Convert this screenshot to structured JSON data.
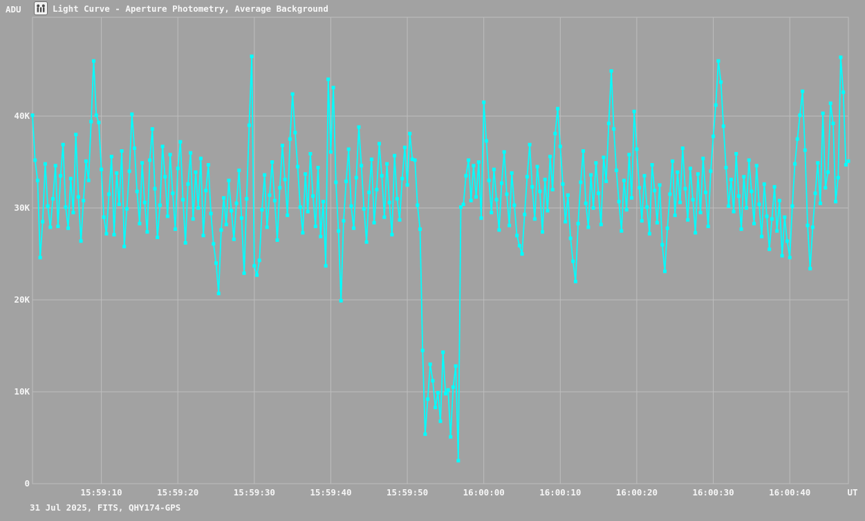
{
  "window": {
    "background_color": "#A2A2A2",
    "grid_color": "#BEBEBE",
    "text_color": "#F6F6F6"
  },
  "header": {
    "y_axis_unit": "ADU",
    "icon": "app-icon",
    "title": "Light Curve - Aperture Photometry, Average Background"
  },
  "footer": {
    "info": "31 Jul 2025, FITS, QHY174-GPS",
    "x_axis_unit": "UT"
  },
  "chart_data": {
    "type": "line",
    "title": "Light Curve - Aperture Photometry, Average Background",
    "xlabel": "UT",
    "ylabel": "ADU",
    "legend": [],
    "grid": true,
    "series_color": "#00FFFF",
    "marker": "square",
    "marker_size_px": 5,
    "ylim": [
      0,
      50750
    ],
    "xlim_sec": [
      1.0,
      107.6667
    ],
    "time_base": "15:59:00",
    "start_time": "15:59:01",
    "sample_interval_sec": 0.3333333,
    "t0_sec": 1.0,
    "dt_sec": 0.3333333,
    "event_note": "occultation drop from ~32000 ADU to ~2500-14500 ADU between ~15:59:51 and ~15:59:57",
    "y_ticks": [
      {
        "value": 0,
        "label": "0"
      },
      {
        "value": 10000,
        "label": "10K"
      },
      {
        "value": 20000,
        "label": "20K"
      },
      {
        "value": 30000,
        "label": "30K"
      },
      {
        "value": 40000,
        "label": "40K"
      }
    ],
    "x_ticks": [
      {
        "sec": 10,
        "label": "15:59:10"
      },
      {
        "sec": 20,
        "label": "15:59:20"
      },
      {
        "sec": 30,
        "label": "15:59:30"
      },
      {
        "sec": 40,
        "label": "15:59:40"
      },
      {
        "sec": 50,
        "label": "15:59:50"
      },
      {
        "sec": 60,
        "label": "16:00:00"
      },
      {
        "sec": 70,
        "label": "16:00:10"
      },
      {
        "sec": 80,
        "label": "16:00:20"
      },
      {
        "sec": 90,
        "label": "16:00:30"
      },
      {
        "sec": 100,
        "label": "16:00:40"
      }
    ],
    "values_adu": [
      40100,
      35200,
      33000,
      24600,
      28500,
      34800,
      30200,
      27900,
      31000,
      34600,
      28000,
      33500,
      36900,
      30100,
      27800,
      33200,
      29500,
      38000,
      31200,
      26400,
      30800,
      35100,
      33000,
      39400,
      46000,
      40100,
      39300,
      34200,
      29000,
      27200,
      31500,
      35600,
      27100,
      33800,
      30400,
      36200,
      25800,
      29900,
      34000,
      40200,
      36500,
      31800,
      28300,
      34900,
      30600,
      27400,
      35200,
      38600,
      32100,
      26800,
      30300,
      36700,
      33400,
      29100,
      35800,
      31600,
      27700,
      34300,
      37200,
      30900,
      26200,
      32600,
      36000,
      28800,
      33900,
      30000,
      35400,
      27000,
      31900,
      34700,
      29400,
      26100,
      24000,
      20700,
      27600,
      31100,
      28200,
      33000,
      29700,
      26600,
      30500,
      34100,
      28900,
      22900,
      31000,
      39000,
      46500,
      23700,
      22700,
      24300,
      29800,
      33600,
      27900,
      31400,
      35000,
      30800,
      26500,
      32200,
      36800,
      33100,
      29200,
      37500,
      42400,
      38200,
      34500,
      30100,
      27300,
      33700,
      29600,
      35900,
      31300,
      28000,
      34400,
      26900,
      30700,
      23700,
      44000,
      36100,
      43100,
      32800,
      27500,
      19900,
      28600,
      32900,
      36400,
      30200,
      27800,
      33300,
      38800,
      34600,
      29900,
      26300,
      31700,
      35300,
      28400,
      32000,
      37000,
      33500,
      29000,
      34800,
      30600,
      27100,
      35700,
      31000,
      28700,
      33200,
      36600,
      32500,
      38100,
      35300,
      35200,
      30300,
      27700,
      14500,
      5400,
      9200,
      13000,
      11200,
      8300,
      9900,
      6800,
      14300,
      9800,
      10200,
      5100,
      10500,
      12800,
      2500,
      30100,
      30400,
      33500,
      35200,
      30800,
      34600,
      31200,
      35000,
      28900,
      41500,
      37300,
      33000,
      29500,
      34200,
      30900,
      27600,
      32700,
      36100,
      31500,
      28100,
      33800,
      30300,
      27000,
      25900,
      25000,
      29300,
      33400,
      36900,
      32300,
      28800,
      34500,
      31800,
      27400,
      33100,
      29700,
      35600,
      32000,
      38100,
      40800,
      36700,
      32600,
      28500,
      31400,
      26700,
      24200,
      22000,
      28300,
      32800,
      36200,
      30500,
      27900,
      33600,
      30000,
      34900,
      31600,
      28200,
      35500,
      32900,
      39200,
      44900,
      38600,
      34100,
      30700,
      27500,
      33000,
      29800,
      35800,
      31100,
      40500,
      36400,
      32200,
      28600,
      33500,
      30100,
      27200,
      34700,
      31900,
      28400,
      32500,
      26000,
      23100,
      27800,
      31500,
      35100,
      29200,
      33900,
      30600,
      36500,
      32100,
      28700,
      34300,
      30900,
      27300,
      33700,
      29500,
      35400,
      31700,
      28000,
      34000,
      37800,
      41200,
      46000,
      43700,
      38900,
      34400,
      30200,
      33100,
      29600,
      35900,
      31300,
      27700,
      33400,
      30000,
      35200,
      31800,
      28300,
      34600,
      30400,
      26900,
      32600,
      29100,
      25500,
      28800,
      32300,
      27500,
      30800,
      24800,
      29000,
      26400,
      24600,
      30200,
      34800,
      37500,
      40100,
      42700,
      36300,
      28100,
      23400,
      27900,
      31600,
      34900,
      30500,
      40300,
      32200,
      33900,
      41400,
      39200,
      30700,
      33300,
      46400,
      42600,
      34700,
      35100
    ]
  }
}
